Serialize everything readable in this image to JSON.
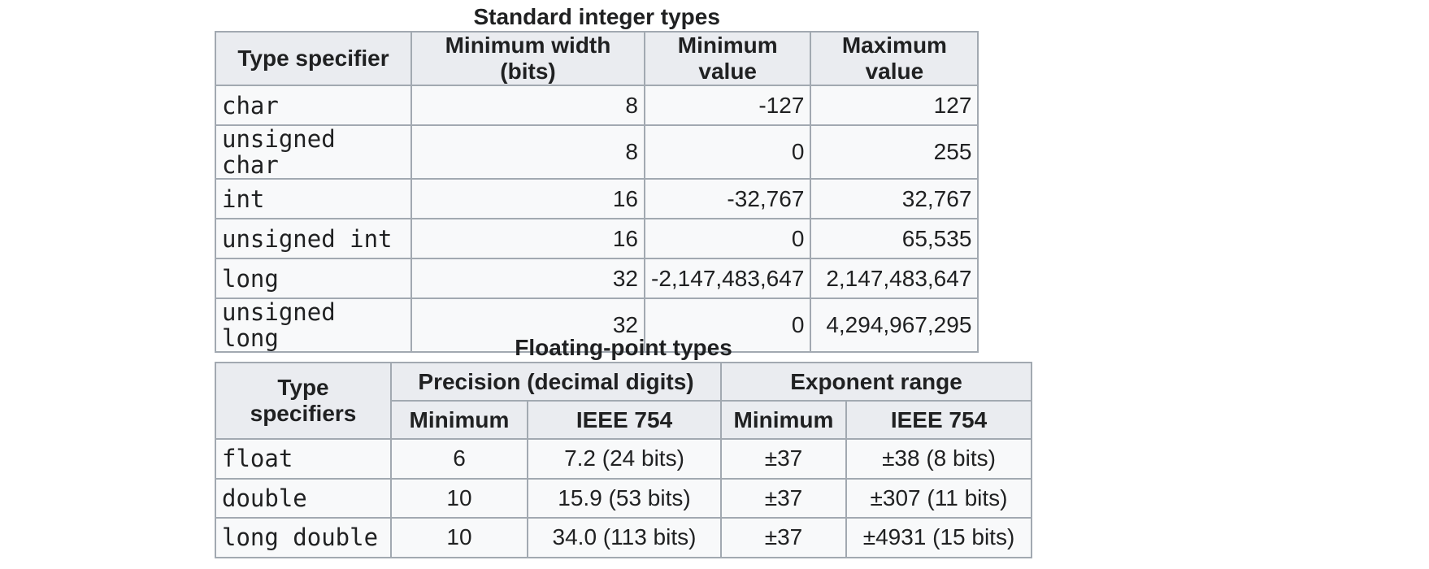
{
  "integer_table": {
    "caption": "Standard integer types",
    "headers": [
      "Type specifier",
      "Minimum width (bits)",
      "Minimum value",
      "Maximum value"
    ],
    "rows": [
      [
        "char",
        "8",
        "-127",
        "127"
      ],
      [
        "unsigned char",
        "8",
        "0",
        "255"
      ],
      [
        "int",
        "16",
        "-32,767",
        "32,767"
      ],
      [
        "unsigned int",
        "16",
        "0",
        "65,535"
      ],
      [
        "long",
        "32",
        "-2,147,483,647",
        "2,147,483,647"
      ],
      [
        "unsigned long",
        "32",
        "0",
        "4,294,967,295"
      ]
    ]
  },
  "float_table": {
    "caption": "Floating-point types",
    "header_type": "Type specifiers",
    "group_precision": "Precision (decimal digits)",
    "group_exponent": "Exponent range",
    "sub_headers": [
      "Minimum",
      "IEEE 754",
      "Minimum",
      "IEEE 754"
    ],
    "rows": [
      [
        "float",
        "6",
        "7.2 (24 bits)",
        "±37",
        "±38 (8 bits)"
      ],
      [
        "double",
        "10",
        "15.9 (53 bits)",
        "±37",
        "±307 (11 bits)"
      ],
      [
        "long double",
        "10",
        "34.0 (113 bits)",
        "±37",
        "±4931 (15 bits)"
      ]
    ]
  }
}
